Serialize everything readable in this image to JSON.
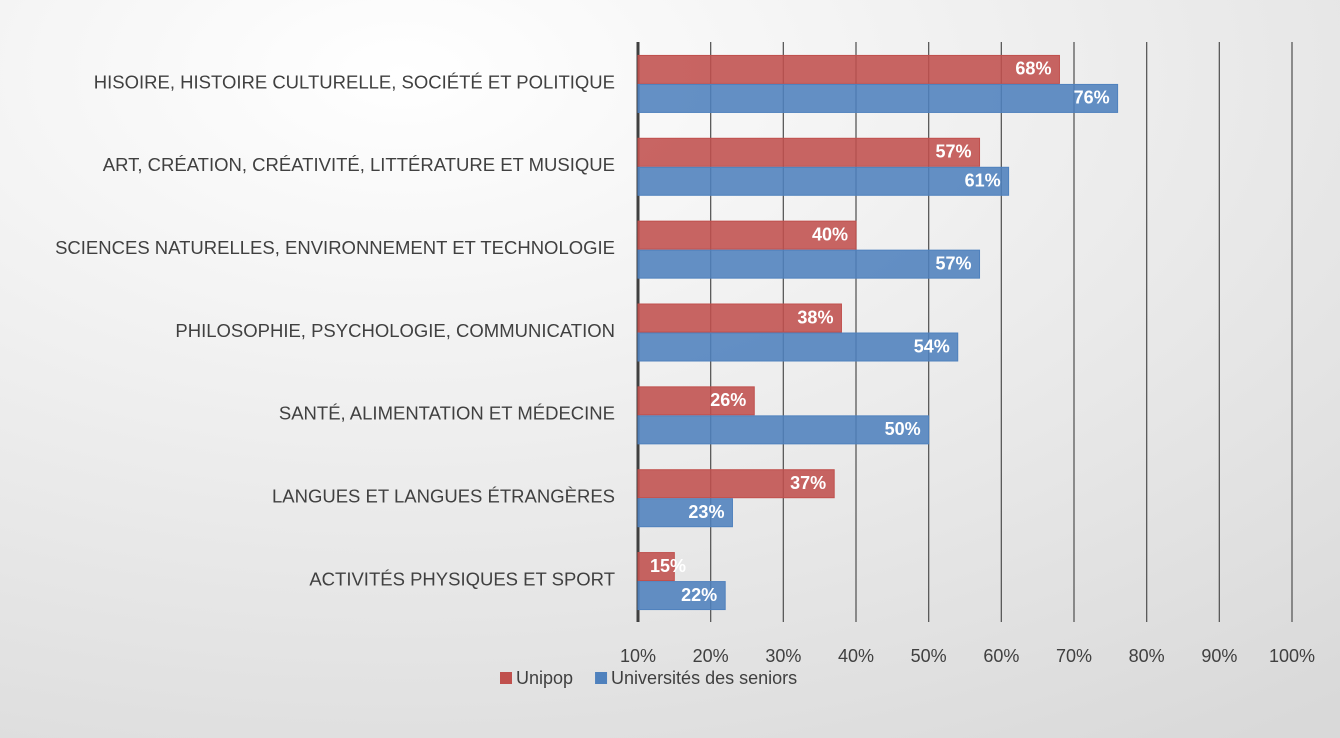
{
  "chart_data": {
    "type": "barh",
    "categories": [
      "HISOIRE, HISTOIRE CULTURELLE, SOCIÉTÉ ET POLITIQUE",
      "ART, CRÉATION, CRÉATIVITÉ, LITTÉRATURE ET MUSIQUE",
      "SCIENCES NATURELLES, ENVIRONNEMENT ET TECHNOLOGIE",
      "PHILOSOPHIE, PSYCHOLOGIE, COMMUNICATION",
      "SANTÉ, ALIMENTATION ET MÉDECINE",
      "LANGUES ET LANGUES ÉTRANGÈRES",
      "ACTIVITÉS PHYSIQUES ET SPORT"
    ],
    "series": [
      {
        "name": "Unipop",
        "color": "#c0504d",
        "values": [
          68,
          57,
          40,
          38,
          26,
          37,
          15
        ],
        "value_labels": [
          "68%",
          "57%",
          "40%",
          "38%",
          "26%",
          "37%",
          "15%"
        ]
      },
      {
        "name": "Universités des seniors",
        "color": "#4f81bd",
        "values": [
          76,
          61,
          57,
          54,
          50,
          23,
          22
        ],
        "value_labels": [
          "76%",
          "61%",
          "57%",
          "54%",
          "50%",
          "23%",
          "22%"
        ]
      }
    ],
    "xlim": [
      10,
      100
    ],
    "xticks": [
      {
        "value": 10,
        "label": "10%"
      },
      {
        "value": 20,
        "label": "20%"
      },
      {
        "value": 30,
        "label": "30%"
      },
      {
        "value": 40,
        "label": "40%"
      },
      {
        "value": 50,
        "label": "50%"
      },
      {
        "value": 60,
        "label": "60%"
      },
      {
        "value": 70,
        "label": "70%"
      },
      {
        "value": 80,
        "label": "80%"
      },
      {
        "value": 90,
        "label": "90%"
      },
      {
        "value": 100,
        "label": "100%"
      }
    ],
    "grid": true,
    "legend": "bottom"
  }
}
